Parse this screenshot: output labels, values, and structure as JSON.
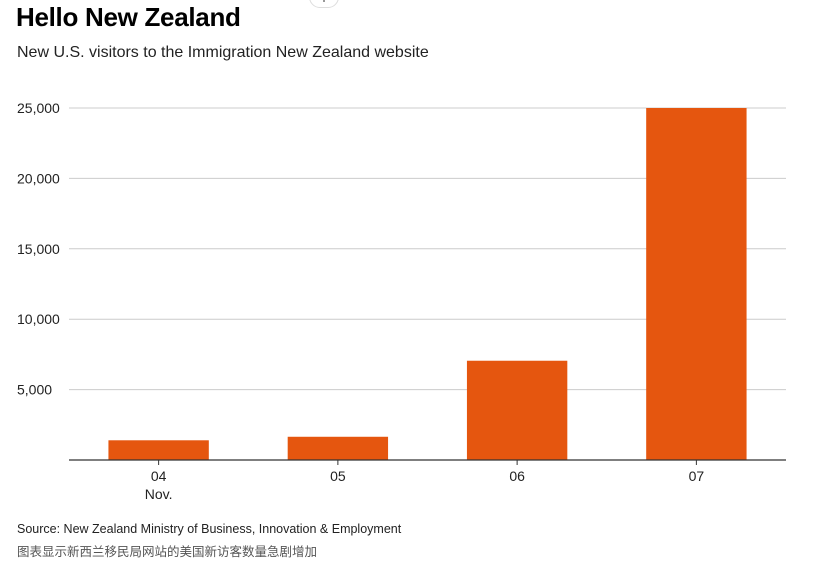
{
  "header": {
    "title": "Hello New Zealand",
    "subtitle": "New U.S. visitors to the Immigration New Zealand website"
  },
  "footer": {
    "source": "Source: New Zealand Ministry of Business, Innovation & Employment",
    "caption": "图表显示新西兰移民局网站的美国新访客数量急剧增加"
  },
  "colors": {
    "bar": "#E5560F",
    "grid": "#cccccc",
    "axis": "#333333"
  },
  "chart_data": {
    "type": "bar",
    "title": "Hello New Zealand",
    "subtitle": "New U.S. visitors to the Immigration New Zealand website",
    "categories": [
      "04",
      "05",
      "06",
      "07"
    ],
    "category_sublabels": [
      "Nov.",
      "",
      "",
      ""
    ],
    "values": [
      1400,
      1650,
      7050,
      25000
    ],
    "ylim": [
      0,
      25000
    ],
    "yticks": [
      5000,
      10000,
      15000,
      20000,
      25000
    ],
    "ytick_labels": [
      "5,000",
      "10,000",
      "15,000",
      "20,000",
      "25,000"
    ],
    "xlabel": "",
    "ylabel": "",
    "grid": true,
    "legend": "none"
  }
}
